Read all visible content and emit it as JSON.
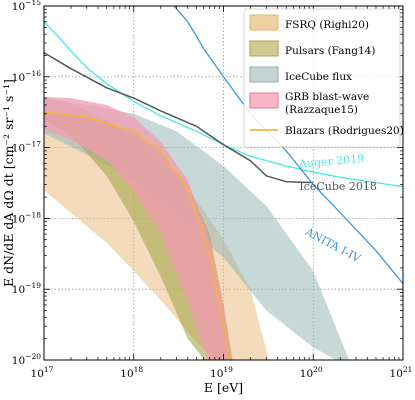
{
  "chart_data": {
    "type": "area",
    "title": "",
    "xlabel": "E [eV]",
    "ylabel": "E dN/dE dA dΩ dt [cm⁻² sr⁻¹ s⁻¹]",
    "xscale": "log",
    "yscale": "log",
    "xlim": [
      1e+17,
      1e+21
    ],
    "ylim": [
      1e-20,
      1e-15
    ],
    "grid": true,
    "legend_position": "top-right",
    "x_ticks": [
      {
        "value": 1e+17,
        "base": "10",
        "exp": "17"
      },
      {
        "value": 1e+18,
        "base": "10",
        "exp": "18"
      },
      {
        "value": 1e+19,
        "base": "10",
        "exp": "19"
      },
      {
        "value": 1e+20,
        "base": "10",
        "exp": "20"
      },
      {
        "value": 1e+21,
        "base": "10",
        "exp": "21"
      }
    ],
    "y_ticks": [
      {
        "value": 1e-15,
        "base": "10",
        "exp": "−15"
      },
      {
        "value": 1e-16,
        "base": "10",
        "exp": "−16"
      },
      {
        "value": 1e-17,
        "base": "10",
        "exp": "−17"
      },
      {
        "value": 1e-18,
        "base": "10",
        "exp": "−18"
      },
      {
        "value": 1e-19,
        "base": "10",
        "exp": "−19"
      },
      {
        "value": 1e-20,
        "base": "10",
        "exp": "−20"
      }
    ],
    "bands": [
      {
        "name": "FSRQ (Righi20)",
        "fill": "#e7b77a",
        "opacity": 0.5,
        "x": [
          1e+17,
          2e+17,
          5e+17,
          1e+18,
          2e+18,
          5e+18,
          1e+19,
          2e+19,
          3.2e+19
        ],
        "upper": [
          5e-17,
          4.2e-17,
          2.5e-17,
          1.3e-17,
          6e-18,
          1.8e-18,
          5e-19,
          1e-19,
          1e-20
        ],
        "lower": [
          2.5e-18,
          1.2e-18,
          4.5e-19,
          1.8e-19,
          7e-20,
          1.8e-20,
          8e-21,
          8e-21,
          8e-21
        ]
      },
      {
        "name": "IceCube flux",
        "fill": "#8fb3b0",
        "opacity": 0.5,
        "x": [
          1e+17,
          3e+17,
          1e+18,
          3e+18,
          1e+19,
          3e+19,
          1e+20,
          2.5e+20
        ],
        "upper": [
          5e-17,
          4e-17,
          3e-17,
          1.7e-17,
          5.5e-18,
          1.5e-18,
          1.8e-19,
          1e-20
        ],
        "lower": [
          1.6e-17,
          8e-18,
          3.5e-18,
          1e-18,
          2.8e-19,
          5e-20,
          1.5e-20,
          8e-21
        ]
      },
      {
        "name": "Pulsars (Fang14)",
        "fill": "#a9a64f",
        "opacity": 0.6,
        "x": [
          1e+17,
          2e+17,
          5e+17,
          1e+18,
          2e+18,
          4e+18,
          7e+18,
          1e+19,
          1.3e+19
        ],
        "upper": [
          3.2e-17,
          3e-17,
          2.4e-17,
          1.6e-17,
          8.5e-18,
          3e-18,
          6e-19,
          6e-20,
          8e-21
        ],
        "lower": [
          2.5e-17,
          1.5e-17,
          4e-18,
          9e-19,
          1.5e-19,
          2e-20,
          8e-21,
          8e-21,
          8e-21
        ]
      },
      {
        "name": "GRB blast-wave (Razzaque15)",
        "fill": "#f29bb2",
        "opacity": 0.75,
        "x": [
          1e+17,
          2e+17,
          5e+17,
          1e+18,
          2e+18,
          4e+18,
          7e+18,
          1e+19,
          1.25e+19
        ],
        "upper": [
          5.2e-17,
          5e-17,
          4e-17,
          2.7e-17,
          1.2e-17,
          3.5e-18,
          5e-19,
          6e-20,
          8e-21
        ],
        "lower": [
          1.8e-17,
          1.3e-17,
          6.5e-18,
          2.5e-18,
          6e-19,
          7e-20,
          8e-21,
          8e-21,
          8e-21
        ]
      }
    ],
    "series": [
      {
        "name": "Blazars (Rodrigues20)",
        "color": "#f5b342",
        "width": 1.6,
        "x": [
          1e+17,
          3e+17,
          1e+18,
          2e+18,
          4e+18,
          7e+18,
          1e+19,
          1.2e+19
        ],
        "y": [
          3.2e-17,
          2.7e-17,
          1.7e-17,
          9e-18,
          2.5e-18,
          3e-19,
          3e-20,
          8e-21
        ]
      },
      {
        "name": "Auger 2019",
        "color": "#4ae6e6",
        "width": 1.3,
        "x": [
          1e+17,
          1.5e+17,
          2e+17,
          3e+17,
          5e+17,
          1e+18,
          2e+18,
          5e+18,
          1e+19,
          2e+19,
          5e+19,
          1e+20,
          2e+20,
          5e+20,
          1e+21
        ],
        "y": [
          6e-16,
          3.5e-16,
          2.3e-16,
          1.35e-16,
          8e-17,
          4.5e-17,
          2.8e-17,
          1.7e-17,
          1.1e-17,
          7.5e-18,
          5.5e-18,
          4.5e-18,
          3.8e-18,
          3.2e-18,
          2.8e-18
        ]
      },
      {
        "name": "IceCube 2018",
        "color": "#4d5a5a",
        "width": 1.5,
        "x": [
          1e+17,
          2e+17,
          5e+17,
          1e+18,
          2e+18,
          5e+18,
          1e+19,
          2e+19,
          3e+19,
          5e+19,
          1e+20
        ],
        "y": [
          2.2e-16,
          1.3e-16,
          7e-17,
          5e-17,
          3.3e-17,
          2e-17,
          1.1e-17,
          6.5e-18,
          4e-18,
          3.3e-18,
          3.2e-18
        ]
      },
      {
        "name": "ANITA I-IV",
        "color": "#3d95df",
        "width": 1.3,
        "x": [
          2.8e+18,
          4e+18,
          6e+18,
          1e+19,
          2e+19,
          5e+19,
          1e+20,
          2e+20,
          5e+20,
          1e+21
        ],
        "y": [
          1e-15,
          6e-16,
          2.5e-16,
          1e-16,
          3e-17,
          9e-18,
          3e-18,
          1.2e-18,
          3.5e-19,
          1.2e-19
        ]
      }
    ],
    "legend": [
      {
        "label": "FSRQ (Righi20)",
        "kind": "patch",
        "fill": "#f0cfa3",
        "stroke": "#e7b77a"
      },
      {
        "label": "Pulsars (Fang14)",
        "kind": "patch",
        "fill": "#cfcb92",
        "stroke": "#a9a64f"
      },
      {
        "label": "IceCube flux",
        "kind": "patch",
        "fill": "#c4d6d3",
        "stroke": "#8fb3b0"
      },
      {
        "label": "GRB blast-wave",
        "label2": "(Razzaque15)",
        "kind": "patch",
        "fill": "#f7b7c7",
        "stroke": "#e07893"
      },
      {
        "label": "Blazars (Rodrigues20)",
        "kind": "line",
        "stroke": "#f5b342"
      }
    ],
    "curve_labels": [
      {
        "text": "Auger 2019",
        "color": "#4ae6e6",
        "x": 7e+19,
        "y": 5.2e-18,
        "rotate": -5
      },
      {
        "text": "IceCube 2018",
        "color": "#4d5a5a",
        "x": 7e+19,
        "y": 2.5e-18,
        "rotate": 0
      },
      {
        "text": "ANITA I-IV",
        "color": "#3d95df",
        "x": 8e+19,
        "y": 6e-19,
        "rotate": 28
      }
    ]
  }
}
